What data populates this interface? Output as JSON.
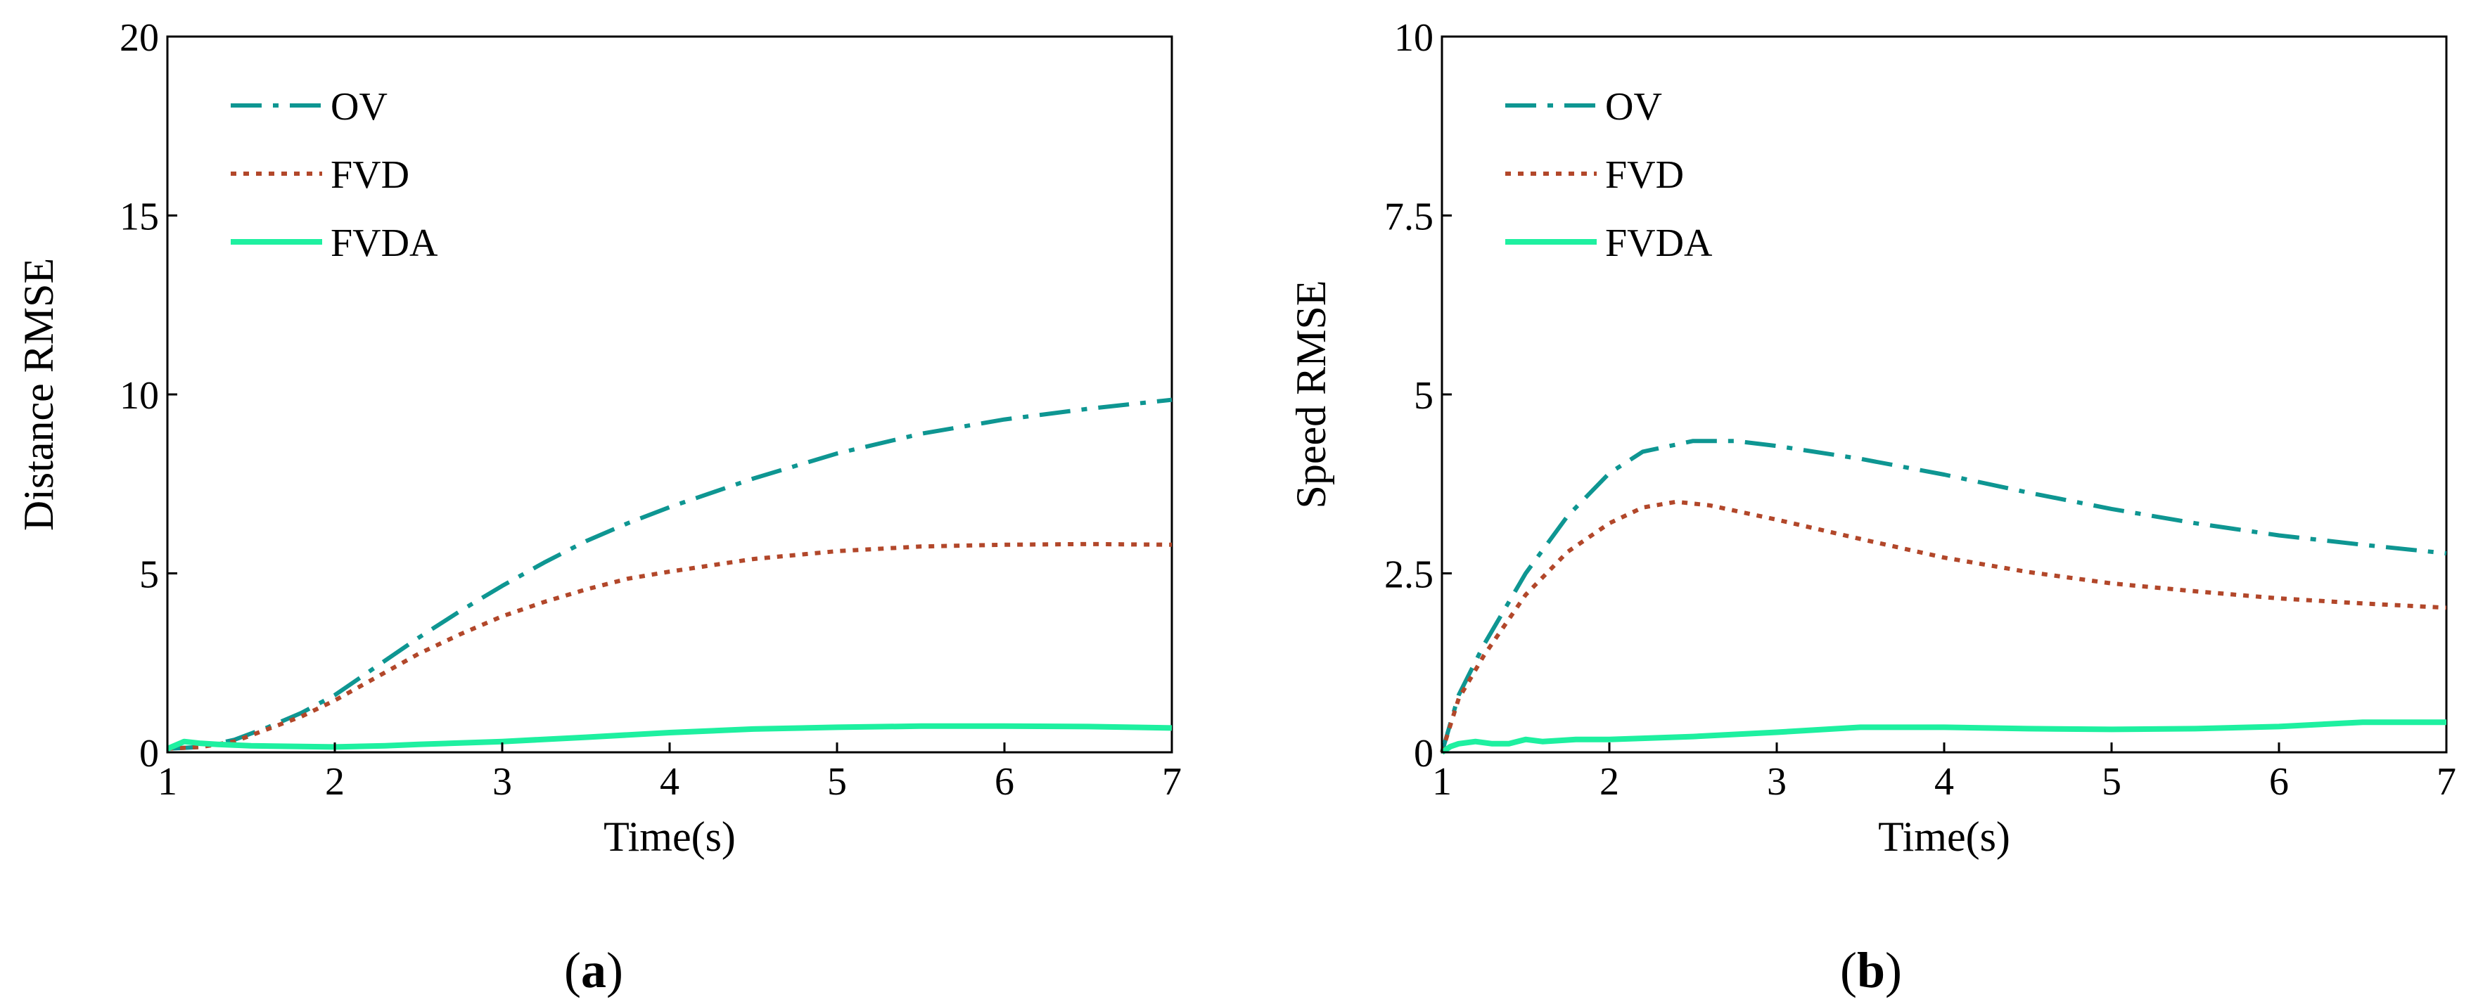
{
  "chart_data": [
    {
      "type": "line",
      "panel_label": "a",
      "caption_open": "(",
      "caption_close": ")",
      "title": "",
      "xlabel": "Time(s)",
      "ylabel": "Distance RMSE",
      "xlim": [
        1,
        7
      ],
      "ylim": [
        0,
        20
      ],
      "xticks": [
        1,
        2,
        3,
        4,
        5,
        6,
        7
      ],
      "xtick_labels": [
        "1",
        "2",
        "3",
        "4",
        "5",
        "6",
        "7"
      ],
      "yticks": [
        0,
        5,
        10,
        15,
        20
      ],
      "ytick_labels": [
        "0",
        "5",
        "10",
        "15",
        "20"
      ],
      "grid": false,
      "legend_position": "top-left",
      "series": [
        {
          "name": "OV",
          "style": "dashdot",
          "color": "#0e9692",
          "x": [
            1.0,
            1.2,
            1.4,
            1.6,
            1.8,
            2.0,
            2.25,
            2.5,
            2.75,
            3.0,
            3.25,
            3.5,
            3.75,
            4.0,
            4.5,
            5.0,
            5.5,
            6.0,
            6.5,
            7.0
          ],
          "y": [
            0.1,
            0.15,
            0.35,
            0.7,
            1.1,
            1.6,
            2.4,
            3.2,
            3.95,
            4.65,
            5.3,
            5.9,
            6.4,
            6.85,
            7.65,
            8.35,
            8.9,
            9.3,
            9.6,
            9.85
          ]
        },
        {
          "name": "FVD",
          "style": "dotted",
          "color": "#b2472a",
          "x": [
            1.0,
            1.2,
            1.4,
            1.6,
            1.8,
            2.0,
            2.25,
            2.5,
            2.75,
            3.0,
            3.25,
            3.5,
            3.75,
            4.0,
            4.5,
            5.0,
            5.5,
            6.0,
            6.5,
            7.0
          ],
          "y": [
            0.1,
            0.15,
            0.3,
            0.65,
            1.0,
            1.45,
            2.1,
            2.75,
            3.3,
            3.8,
            4.2,
            4.55,
            4.85,
            5.05,
            5.4,
            5.62,
            5.75,
            5.8,
            5.82,
            5.8
          ]
        },
        {
          "name": "FVDA",
          "style": "solid",
          "color": "#1ef0a0",
          "x": [
            1.0,
            1.05,
            1.1,
            1.2,
            1.3,
            1.5,
            2.0,
            2.3,
            2.5,
            3.0,
            3.5,
            4.0,
            4.5,
            5.0,
            5.5,
            6.0,
            6.5,
            7.0
          ],
          "y": [
            0.1,
            0.2,
            0.3,
            0.25,
            0.22,
            0.18,
            0.15,
            0.18,
            0.22,
            0.3,
            0.42,
            0.55,
            0.65,
            0.7,
            0.73,
            0.73,
            0.72,
            0.68
          ]
        }
      ]
    },
    {
      "type": "line",
      "panel_label": "b",
      "caption_open": "(",
      "caption_close": ")",
      "title": "",
      "xlabel": "Time(s)",
      "ylabel": "Speed RMSE",
      "xlim": [
        1,
        7
      ],
      "ylim": [
        0,
        10
      ],
      "xticks": [
        1,
        2,
        3,
        4,
        5,
        6,
        7
      ],
      "xtick_labels": [
        "1",
        "2",
        "3",
        "4",
        "5",
        "6",
        "7"
      ],
      "yticks": [
        0,
        2.5,
        5,
        7.5,
        10
      ],
      "ytick_labels": [
        "0",
        "2.5",
        "5",
        "7.5",
        "10"
      ],
      "grid": false,
      "legend_position": "top-left",
      "series": [
        {
          "name": "OV",
          "style": "dashdot",
          "color": "#0e9692",
          "x": [
            1.0,
            1.1,
            1.25,
            1.5,
            1.75,
            2.0,
            2.2,
            2.5,
            2.75,
            3.0,
            3.5,
            4.0,
            4.5,
            5.0,
            5.5,
            6.0,
            6.5,
            7.0
          ],
          "y": [
            0.0,
            0.8,
            1.5,
            2.5,
            3.3,
            3.9,
            4.2,
            4.35,
            4.35,
            4.28,
            4.1,
            3.88,
            3.63,
            3.4,
            3.2,
            3.03,
            2.9,
            2.78
          ]
        },
        {
          "name": "FVD",
          "style": "dotted",
          "color": "#b2472a",
          "x": [
            1.0,
            1.1,
            1.25,
            1.5,
            1.75,
            2.0,
            2.2,
            2.4,
            2.6,
            3.0,
            3.5,
            4.0,
            4.5,
            5.0,
            5.5,
            6.0,
            6.5,
            7.0
          ],
          "y": [
            0.0,
            0.75,
            1.35,
            2.2,
            2.8,
            3.2,
            3.42,
            3.5,
            3.45,
            3.25,
            2.98,
            2.72,
            2.52,
            2.36,
            2.25,
            2.15,
            2.08,
            2.02
          ]
        },
        {
          "name": "FVDA",
          "style": "solid",
          "color": "#1ef0a0",
          "x": [
            1.0,
            1.05,
            1.1,
            1.2,
            1.3,
            1.4,
            1.5,
            1.6,
            1.8,
            2.0,
            2.5,
            3.0,
            3.5,
            4.0,
            4.5,
            5.0,
            5.5,
            6.0,
            6.5,
            7.0
          ],
          "y": [
            0.0,
            0.08,
            0.12,
            0.15,
            0.12,
            0.12,
            0.18,
            0.15,
            0.18,
            0.18,
            0.22,
            0.28,
            0.35,
            0.35,
            0.33,
            0.32,
            0.33,
            0.36,
            0.42,
            0.42
          ]
        }
      ]
    }
  ]
}
